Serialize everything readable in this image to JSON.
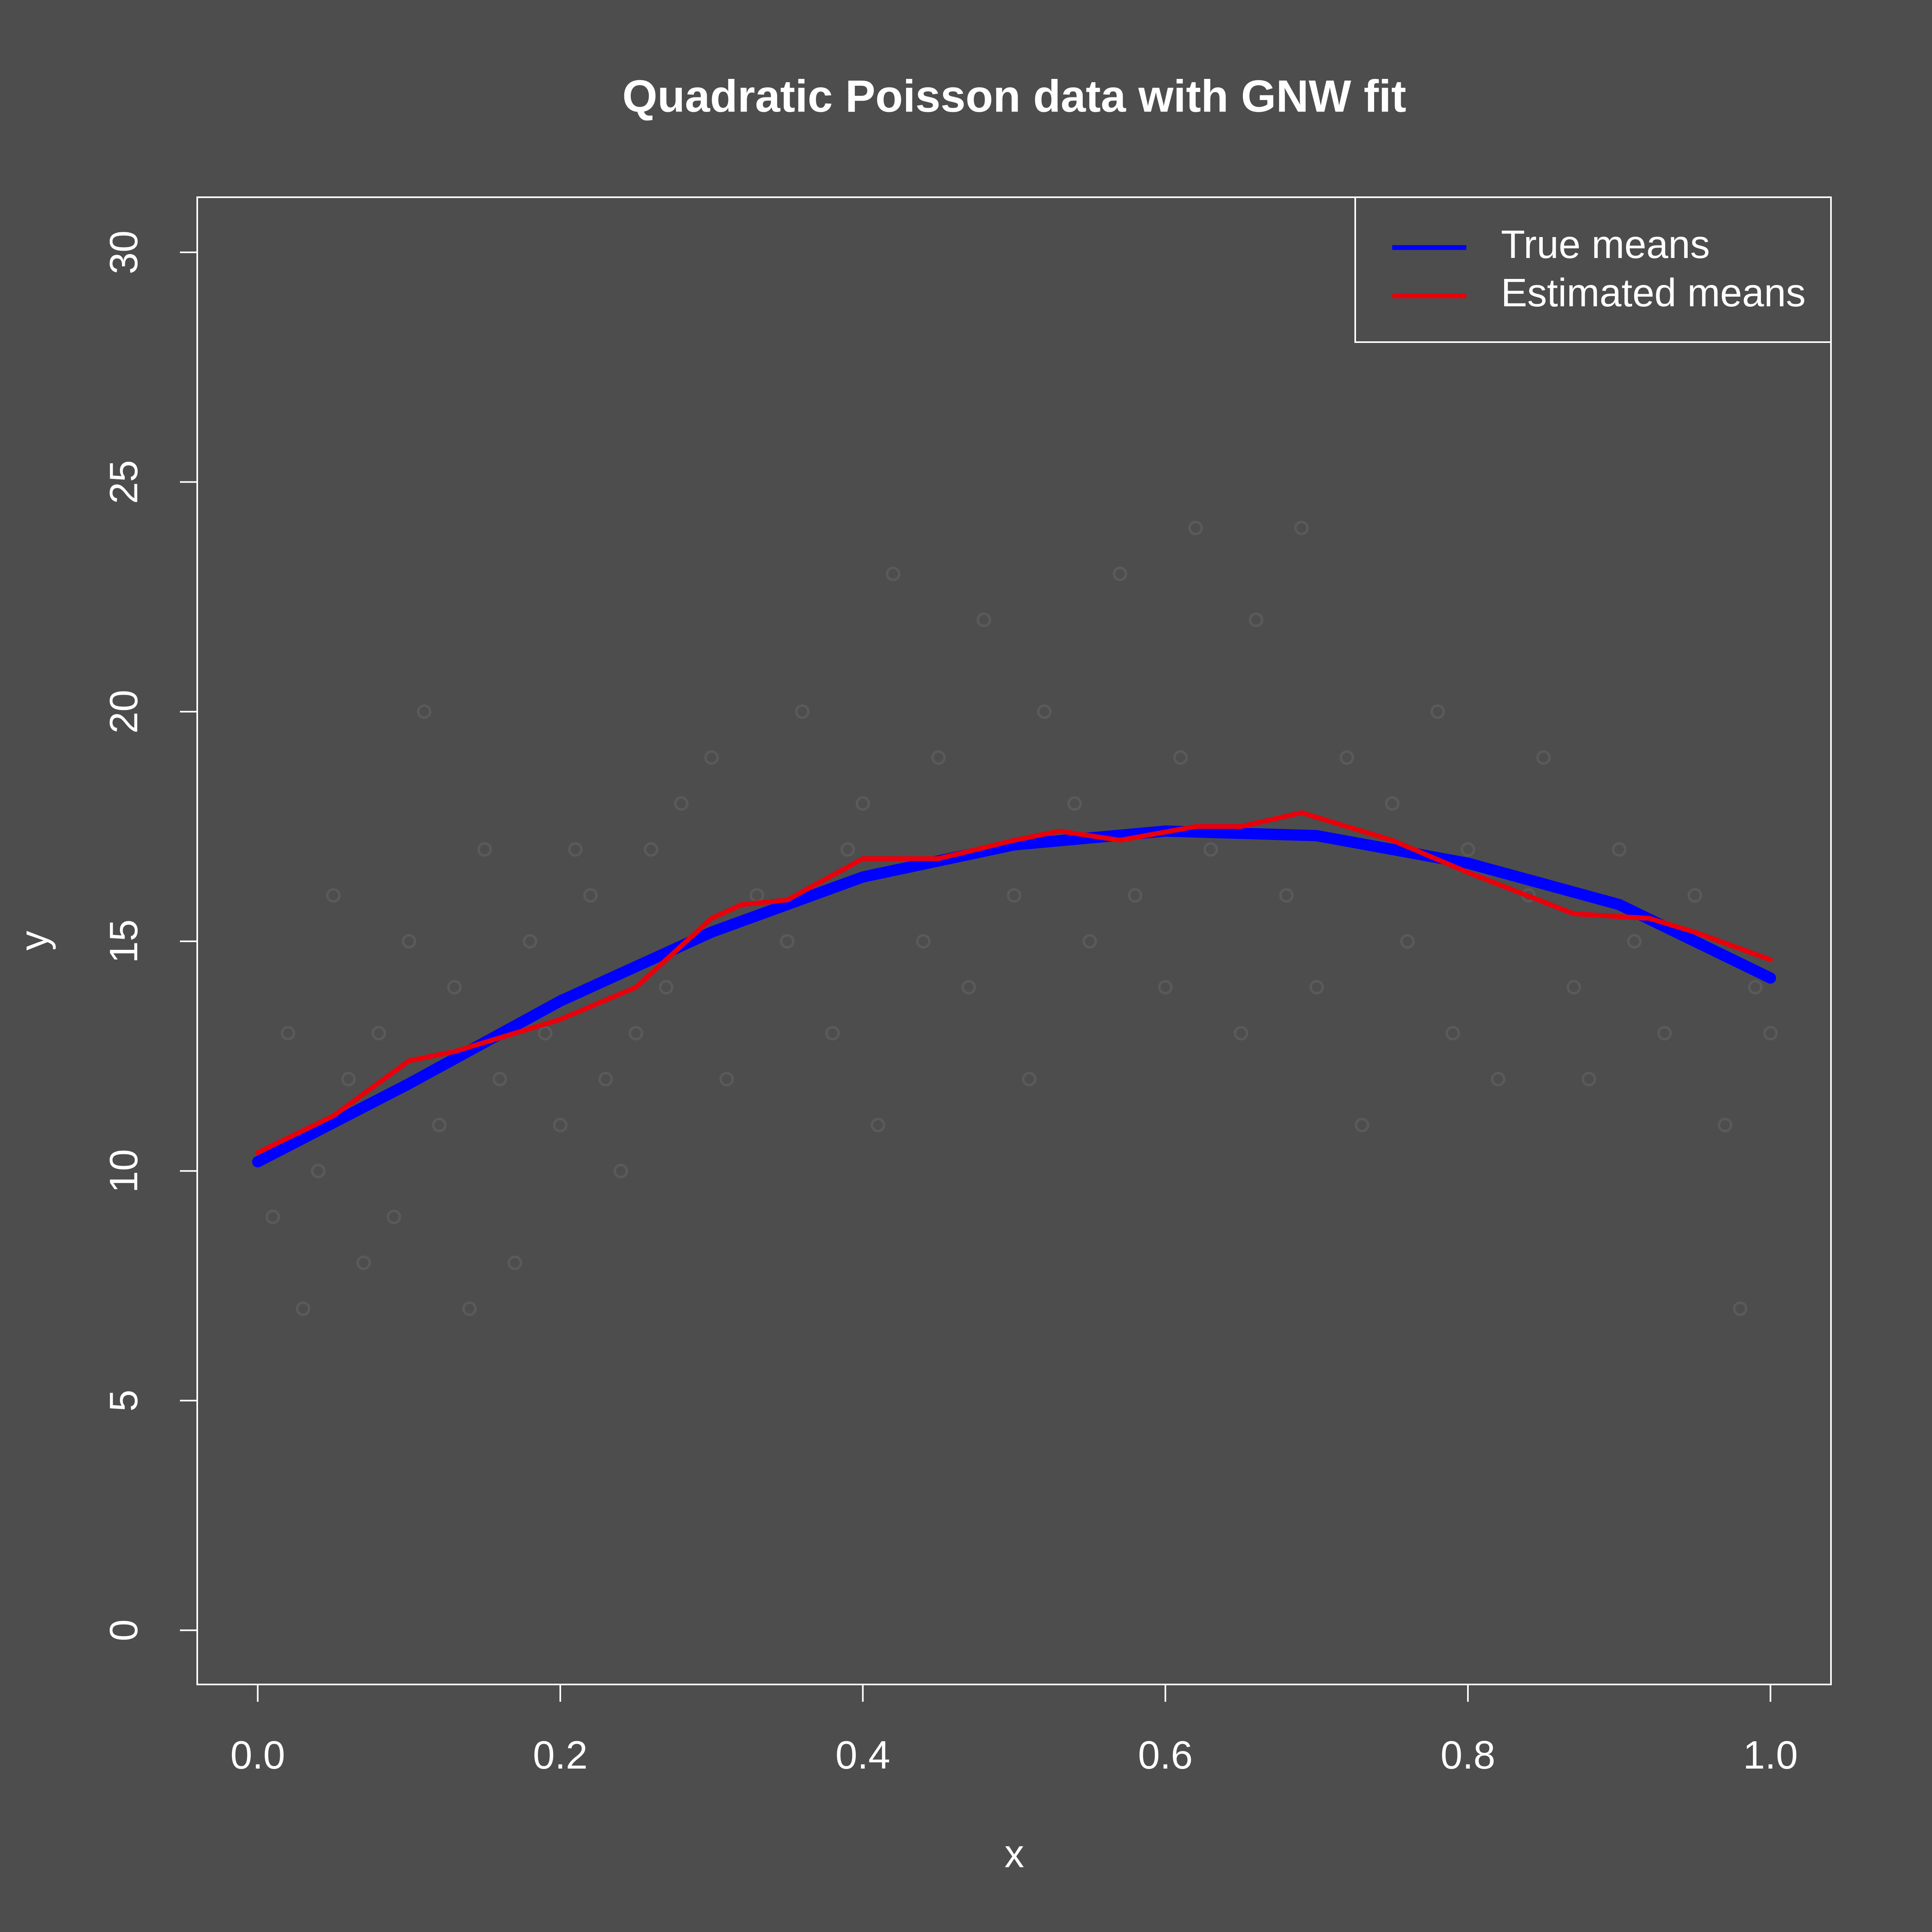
{
  "chart_data": {
    "type": "scatter-line",
    "title": "Quadratic Poisson data with GNW fit",
    "x_label": "x",
    "y_label": "y",
    "xlim": [
      -0.04,
      1.04
    ],
    "ylim": [
      -1.18,
      31.2
    ],
    "xticks": [
      {
        "value": 0,
        "label": "0.0"
      },
      0.2,
      0.4,
      0.6,
      0.8,
      {
        "value": 1,
        "label": "1.0"
      }
    ],
    "yticks": [
      0,
      5,
      10,
      15,
      20,
      25,
      30
    ],
    "legend": "top-right",
    "points": {
      "color": "#5a5a5a",
      "x": [
        0.01,
        0.02,
        0.03,
        0.04,
        0.05,
        0.06,
        0.07,
        0.08,
        0.09,
        0.1,
        0.11,
        0.12,
        0.13,
        0.14,
        0.15,
        0.16,
        0.17,
        0.18,
        0.19,
        0.2,
        0.21,
        0.22,
        0.23,
        0.24,
        0.25,
        0.26,
        0.27,
        0.28,
        0.3,
        0.31,
        0.33,
        0.35,
        0.36,
        0.38,
        0.39,
        0.4,
        0.41,
        0.42,
        0.44,
        0.45,
        0.47,
        0.48,
        0.5,
        0.51,
        0.52,
        0.54,
        0.55,
        0.57,
        0.58,
        0.6,
        0.61,
        0.62,
        0.63,
        0.65,
        0.66,
        0.68,
        0.69,
        0.7,
        0.72,
        0.73,
        0.75,
        0.76,
        0.78,
        0.79,
        0.8,
        0.82,
        0.84,
        0.85,
        0.87,
        0.88,
        0.9,
        0.91,
        0.93,
        0.95,
        0.97,
        0.98,
        0.99,
        1.0
      ],
      "y": [
        9,
        13,
        7,
        10,
        16,
        12,
        8,
        13,
        9,
        15,
        20,
        11,
        14,
        7,
        17,
        12,
        8,
        15,
        13,
        11,
        17,
        16,
        12,
        10,
        13,
        17,
        14,
        18,
        19,
        12,
        16,
        15,
        20,
        13,
        17,
        18,
        11,
        23,
        15,
        19,
        14,
        22,
        16,
        12,
        20,
        18,
        15,
        23,
        16,
        14,
        19,
        24,
        17,
        13,
        22,
        16,
        24,
        14,
        19,
        11,
        18,
        15,
        20,
        13,
        17,
        12,
        16,
        19,
        14,
        12,
        17,
        15,
        13,
        16,
        11,
        7,
        14,
        13
      ]
    },
    "series": [
      {
        "name": "True means",
        "color": "#0000ff",
        "x": [
          0,
          0.1,
          0.2,
          0.3,
          0.4,
          0.5,
          0.6,
          0.7,
          0.8,
          0.9,
          1
        ],
        "values": [
          10.2,
          11.9,
          13.7,
          15.2,
          16.4,
          17.1,
          17.4,
          17.3,
          16.7,
          15.8,
          14.2
        ]
      },
      {
        "name": "Estimated means",
        "color": "#e8000b",
        "x": [
          0,
          0.05,
          0.1,
          0.13,
          0.2,
          0.25,
          0.3,
          0.32,
          0.35,
          0.4,
          0.45,
          0.5,
          0.53,
          0.57,
          0.62,
          0.65,
          0.69,
          0.75,
          0.8,
          0.87,
          0.92,
          0.95,
          1
        ],
        "values": [
          10.4,
          11.2,
          12.4,
          12.6,
          13.3,
          14.0,
          15.5,
          15.8,
          15.9,
          16.8,
          16.8,
          17.2,
          17.4,
          17.2,
          17.5,
          17.5,
          17.8,
          17.2,
          16.5,
          15.6,
          15.5,
          15.2,
          14.6
        ]
      }
    ]
  }
}
